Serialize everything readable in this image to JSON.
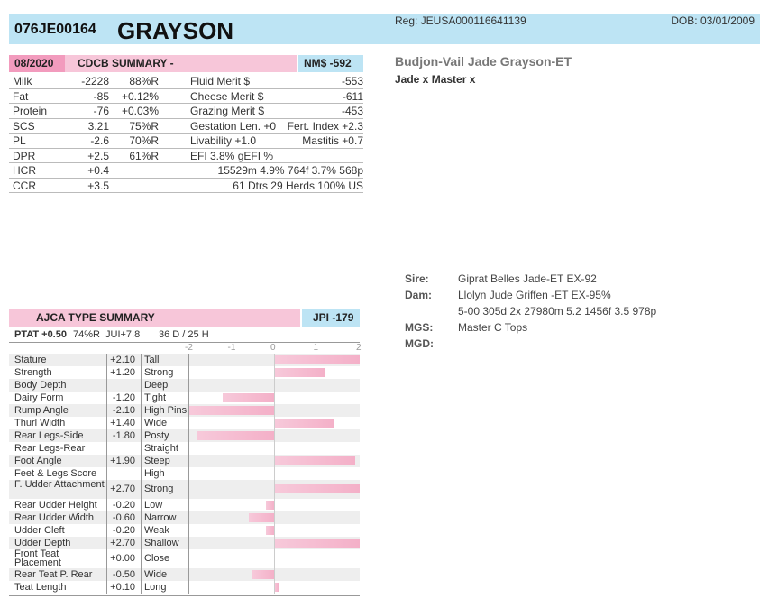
{
  "header": {
    "regno": "076JE00164",
    "name": "GRAYSON",
    "reg": "Reg: JEUSA000116641139",
    "dob": "DOB: 03/01/2009"
  },
  "cdcb": {
    "date": "08/2020",
    "title": "CDCB SUMMARY -",
    "nm": "NM$ -592",
    "rows": [
      {
        "label": "Milk",
        "value": "-2228",
        "rel": "88%R",
        "label2": "Fluid Merit $",
        "value2": "-553"
      },
      {
        "label": "Fat",
        "value": "-85",
        "rel": "+0.12%",
        "label2": "Cheese Merit $",
        "value2": "-611"
      },
      {
        "label": "Protein",
        "value": "-76",
        "rel": "+0.03%",
        "label2": "Grazing Merit $",
        "value2": "-453"
      },
      {
        "label": "SCS",
        "value": "3.21",
        "rel": "75%R",
        "label2": "Gestation Len. +0",
        "value2": "Fert. Index +2.3"
      },
      {
        "label": "PL",
        "value": "-2.6",
        "rel": "70%R",
        "label2": "Livability   +1.0",
        "value2": "Mastitis   +0.7"
      },
      {
        "label": "DPR",
        "value": "+2.5",
        "rel": "61%R",
        "label2": " EFI  3.8%    gEFI  %",
        "value2": ""
      },
      {
        "label": "HCR",
        "value": "+0.4",
        "rel": "",
        "label2": "",
        "value2": "15529m  4.9%  764f  3.7%  568p"
      },
      {
        "label": "CCR",
        "value": "+3.5",
        "rel": "",
        "label2": "",
        "value2": "61 Dtrs  29 Herds  100% US"
      }
    ]
  },
  "pedigree_head": {
    "name": "Budjon-Vail Jade Grayson-ET",
    "cross": "Jade x Master x"
  },
  "pedigree": [
    {
      "label": "Sire:",
      "value": "Giprat Belles Jade-ET EX-92"
    },
    {
      "label": "Dam:",
      "value": "Llolyn Jude Griffen -ET EX-95%"
    },
    {
      "label": "",
      "value": "5-00 305d 2x 27980m 5.2 1456f 3.5 978p"
    },
    {
      "label": "MGS:",
      "value": "Master C Tops"
    },
    {
      "label": "MGD:",
      "value": ""
    }
  ],
  "ajca": {
    "title": "AJCA TYPE SUMMARY",
    "jpi": "JPI -179",
    "ptat": "PTAT +0.50",
    "ptat_rel": "74%R",
    "jui": "JUI+7.8",
    "daughters": "36 D /  25 H",
    "scale_labels": [
      "-2",
      "-1",
      "0",
      "1",
      "2"
    ],
    "traits": [
      {
        "label": "Stature",
        "value": "+2.10",
        "desc": "Tall",
        "num": 2.1
      },
      {
        "label": "Strength",
        "value": "+1.20",
        "desc": "Strong",
        "num": 1.2
      },
      {
        "label": "Body Depth",
        "value": "",
        "desc": "Deep",
        "num": 0
      },
      {
        "label": "Dairy Form",
        "value": "-1.20",
        "desc": "Tight",
        "num": -1.2
      },
      {
        "label": "Rump Angle",
        "value": "-2.10",
        "desc": "High Pins",
        "num": -2.1
      },
      {
        "label": "Thurl Width",
        "value": "+1.40",
        "desc": "Wide",
        "num": 1.4
      },
      {
        "label": "Rear Legs-Side",
        "value": "-1.80",
        "desc": "Posty",
        "num": -1.8
      },
      {
        "label": "Rear Legs-Rear",
        "value": "",
        "desc": "Straight",
        "num": 0
      },
      {
        "label": "Foot Angle",
        "value": "+1.90",
        "desc": "Steep",
        "num": 1.9
      },
      {
        "label": "Feet & Legs Score",
        "value": "",
        "desc": "High",
        "num": 0
      },
      {
        "label": "F. Udder Attachment",
        "value": "+2.70",
        "desc": "Strong",
        "num": 2.7,
        "tall": true
      },
      {
        "label": "Rear Udder Height",
        "value": "-0.20",
        "desc": "Low",
        "num": -0.2
      },
      {
        "label": "Rear Udder Width",
        "value": "-0.60",
        "desc": "Narrow",
        "num": -0.6
      },
      {
        "label": "Udder Cleft",
        "value": "-0.20",
        "desc": "Weak",
        "num": -0.2
      },
      {
        "label": "Udder Depth",
        "value": "+2.70",
        "desc": "Shallow",
        "num": 2.7
      },
      {
        "label": "Front Teat Placement",
        "value": "+0.00",
        "desc": "Close",
        "num": 0.0,
        "tall": true
      },
      {
        "label": "Rear Teat P. Rear",
        "value": "-0.50",
        "desc": "Wide",
        "num": -0.5
      },
      {
        "label": "Teat Length",
        "value": "+0.10",
        "desc": "Long",
        "num": 0.1
      }
    ]
  }
}
